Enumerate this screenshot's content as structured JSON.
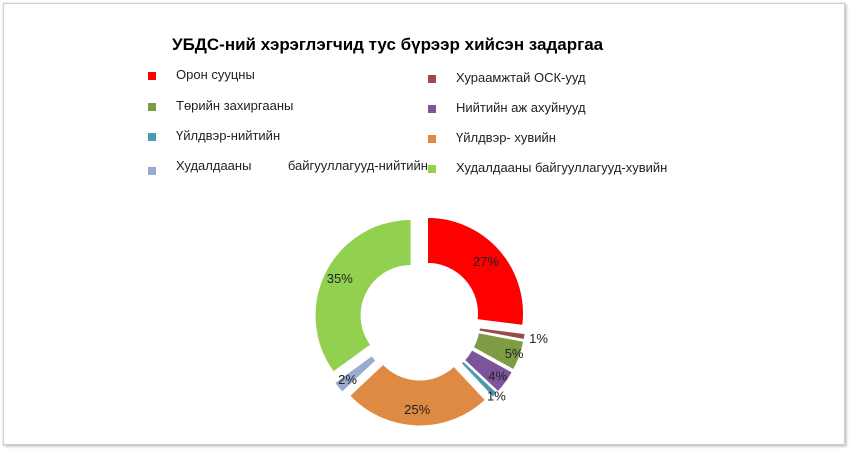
{
  "chart_data": {
    "type": "donut",
    "title": "УБДС-ний хэрэглэгчид тус бүрээр хийсэн задаргаа",
    "legend_placement": "top",
    "series": [
      {
        "values": [
          27,
          1,
          5,
          4,
          1,
          25,
          2,
          35
        ],
        "data_labels": [
          "27%",
          "1%",
          "5%",
          "4%",
          "1%",
          "25%",
          "2%",
          "35%"
        ]
      }
    ],
    "categories": [
      "Орон сууцны",
      "Хураамжтай ОСК-ууд",
      "Төрийн захиргааны",
      "Нийтийн аж ахуйнууд",
      "Үйлдвэр-нийтийн",
      "Үйлдвэр- хувийн",
      "Худалдааны байгууллагууд-нийтийн",
      "Худалдааны байгууллагууд-хувийн"
    ],
    "colors": [
      "#ff0000",
      "#9b4a4a",
      "#7f9c45",
      "#7b559a",
      "#4a9bad",
      "#de8a42",
      "#9aabcf",
      "#92d050"
    ],
    "exploded": true
  }
}
